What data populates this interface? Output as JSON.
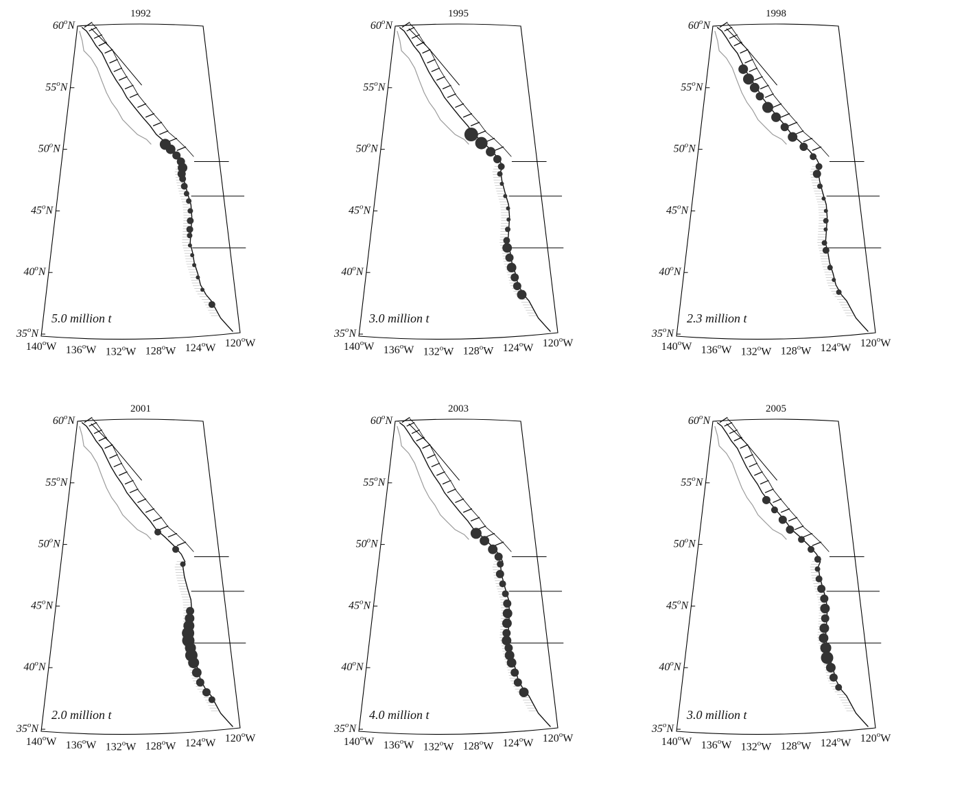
{
  "figure": {
    "lat_ticks": [
      "60",
      "55",
      "50",
      "45",
      "40",
      "35"
    ],
    "lat_suffix": "N",
    "lon_ticks": [
      "140",
      "136",
      "132",
      "128",
      "124",
      "120"
    ],
    "lon_suffix": "W",
    "degree_mark": "o",
    "unit": "million t"
  },
  "panels": [
    {
      "year": "1992",
      "biomass_label": "5.0 million t",
      "biomass": 5.0
    },
    {
      "year": "1995",
      "biomass_label": "3.0 million t",
      "biomass": 3.0
    },
    {
      "year": "1998",
      "biomass_label": "2.3 million t",
      "biomass": 2.3
    },
    {
      "year": "2001",
      "biomass_label": "2.0 million t",
      "biomass": 2.0
    },
    {
      "year": "2003",
      "biomass_label": "4.0 million t",
      "biomass": 4.0
    },
    {
      "year": "2005",
      "biomass_label": "3.0 million t",
      "biomass": 3.0
    }
  ]
}
